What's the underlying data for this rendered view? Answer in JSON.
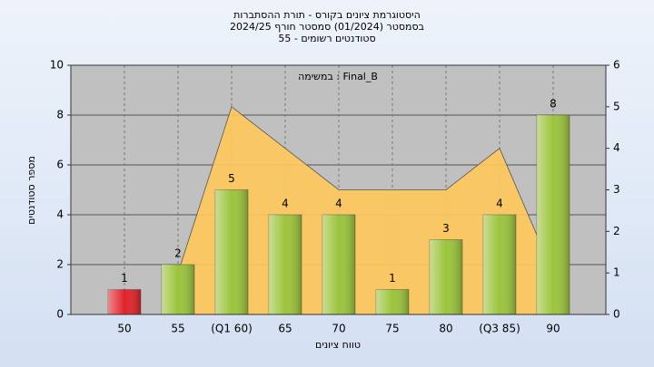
{
  "chart_data": {
    "type": "bar",
    "title": "היסטוגרמת ציונים בקורס - תורת ההסתברות",
    "subtitle": "בסמסטר  (01/2024)  סמסטר חורף 2024/25",
    "subtitle2": "סטודנטים רשומים - 55",
    "annotation": "במשימה : Final_B",
    "xlabel": "טווח ציונים",
    "ylabel": "מספר סטודנטים",
    "categories": [
      "50",
      "55",
      "(Q1 60)",
      "65",
      "70",
      "75",
      "80",
      "(Q3 85)",
      "90"
    ],
    "values": [
      1,
      2,
      5,
      4,
      4,
      1,
      3,
      4,
      8
    ],
    "colors": [
      "#e0242a",
      "#9cc43c",
      "#9cc43c",
      "#9cc43c",
      "#9cc43c",
      "#9cc43c",
      "#9cc43c",
      "#9cc43c",
      "#9cc43c"
    ],
    "area": {
      "values": [
        null,
        1,
        5,
        4,
        3,
        3,
        3,
        4,
        1
      ],
      "color": "#ffc85a",
      "axis": "y2"
    },
    "ylim": [
      0,
      10
    ],
    "yticks": [
      0,
      2,
      4,
      6,
      8,
      10
    ],
    "y2lim": [
      0,
      6
    ],
    "y2ticks": [
      0,
      1,
      2,
      3,
      4,
      5,
      6
    ],
    "grid": true
  }
}
